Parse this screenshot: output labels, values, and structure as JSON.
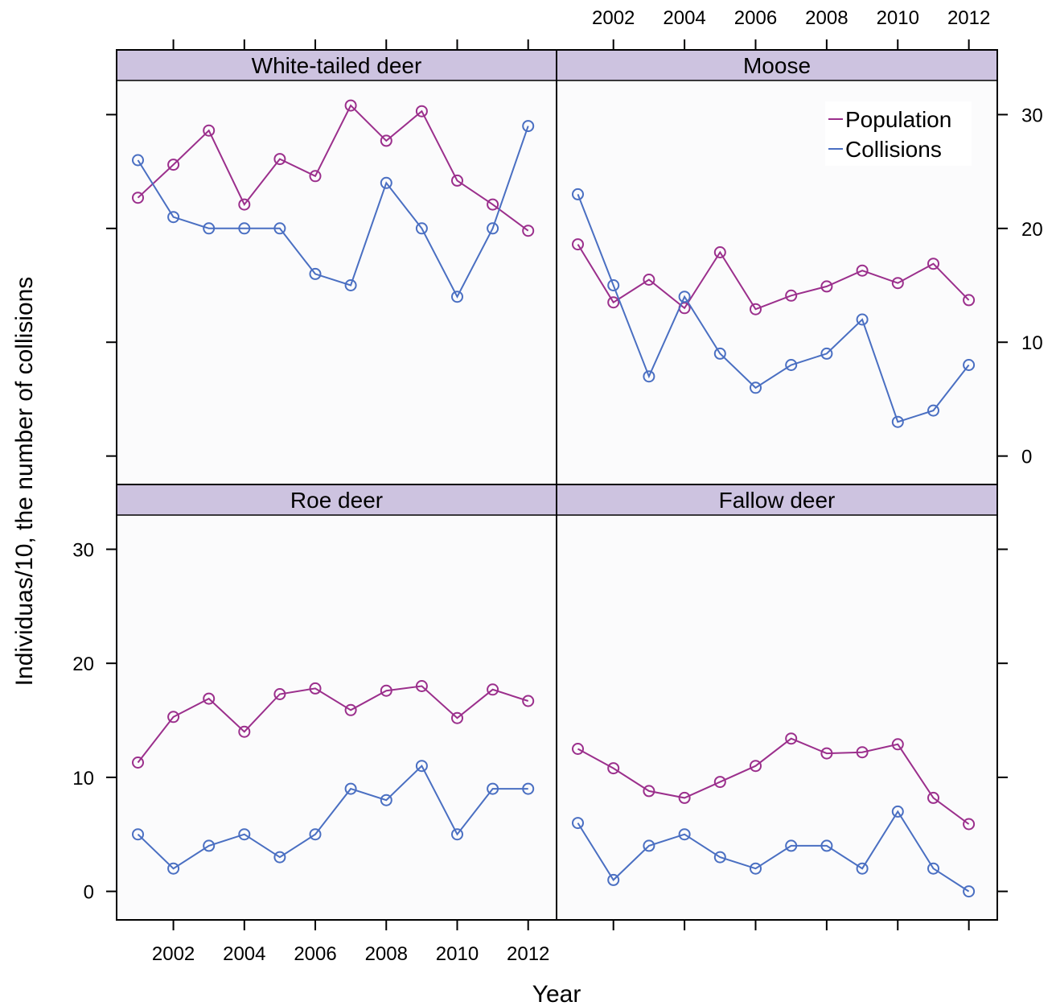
{
  "colors": {
    "population": "#9b2f8c",
    "collisions": "#4a6fc2",
    "strip": "#cdc3e0",
    "panel_bg": "#fbfbfc"
  },
  "chart_data": {
    "type": "line",
    "xlabel": "Year",
    "ylabel": "Individuas/10, the number of collisions",
    "ylim": [
      -2.5,
      33
    ],
    "xlim": [
      2000.4,
      2012.8
    ],
    "x_ticks": [
      2002,
      2004,
      2006,
      2008,
      2010,
      2012
    ],
    "y_ticks": [
      0,
      10,
      20,
      30
    ],
    "legend": {
      "placement": "top-right",
      "entries": [
        "Population",
        "Collisions"
      ]
    },
    "x": [
      2001,
      2002,
      2003,
      2004,
      2005,
      2006,
      2007,
      2008,
      2009,
      2010,
      2011,
      2012
    ],
    "panels": [
      {
        "title": "White-tailed deer",
        "series": [
          {
            "name": "Population",
            "values": [
              22.7,
              25.6,
              28.6,
              22.1,
              26.1,
              24.6,
              30.8,
              27.7,
              30.3,
              24.2,
              22.1,
              19.8
            ]
          },
          {
            "name": "Collisions",
            "values": [
              26,
              21,
              20,
              20,
              20,
              16,
              15,
              24,
              20,
              14,
              20,
              29
            ]
          }
        ]
      },
      {
        "title": "Moose",
        "series": [
          {
            "name": "Population",
            "values": [
              18.6,
              13.5,
              15.5,
              13.0,
              17.9,
              12.9,
              14.1,
              14.9,
              16.3,
              15.2,
              16.9,
              13.7
            ]
          },
          {
            "name": "Collisions",
            "values": [
              23,
              15,
              7,
              14,
              9,
              6,
              8,
              9,
              12,
              3,
              4,
              8
            ]
          }
        ]
      },
      {
        "title": "Roe deer",
        "series": [
          {
            "name": "Population",
            "values": [
              11.3,
              15.3,
              16.9,
              14.0,
              17.3,
              17.8,
              15.9,
              17.6,
              18.0,
              15.2,
              17.7,
              16.7
            ]
          },
          {
            "name": "Collisions",
            "values": [
              5,
              2,
              4,
              5,
              3,
              5,
              9,
              8,
              11,
              5,
              9,
              9
            ]
          }
        ]
      },
      {
        "title": "Fallow deer",
        "series": [
          {
            "name": "Population",
            "values": [
              12.5,
              10.8,
              8.8,
              8.2,
              9.6,
              11.0,
              13.4,
              12.1,
              12.2,
              12.9,
              8.2,
              5.9
            ]
          },
          {
            "name": "Collisions",
            "values": [
              6,
              1,
              4,
              5,
              3,
              2,
              4,
              4,
              2,
              7,
              2,
              0
            ]
          }
        ]
      }
    ]
  }
}
